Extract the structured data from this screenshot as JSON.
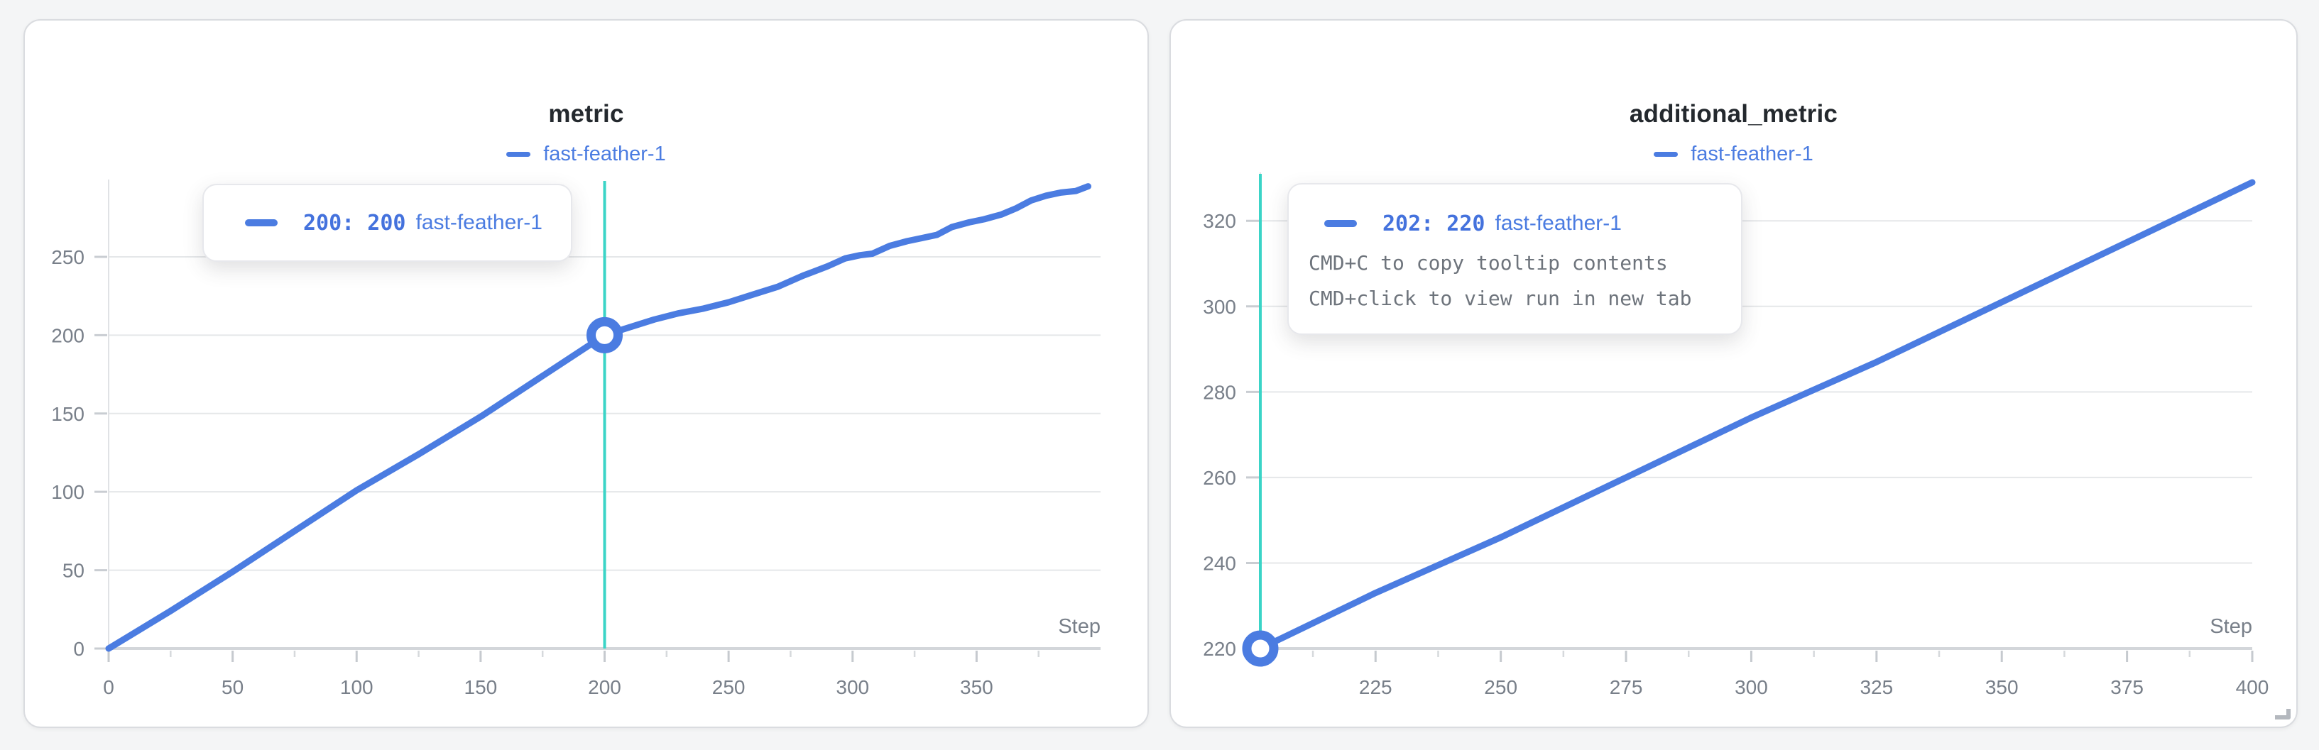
{
  "page": {
    "background": "#f4f5f6"
  },
  "tooltips": {
    "left": {
      "value": "200: 200",
      "run": "fast-feather-1"
    },
    "right": {
      "value": "202: 220",
      "run": "fast-feather-1",
      "hints": [
        "CMD+C to copy tooltip contents",
        "CMD+click to view run in new tab"
      ]
    }
  },
  "chart_data": [
    {
      "type": "line",
      "title": "metric",
      "xlabel": "Step",
      "legend_position": "top-center",
      "grid": true,
      "x_ticks": [
        0,
        50,
        100,
        150,
        200,
        250,
        300,
        350
      ],
      "y_ticks": [
        0,
        50,
        100,
        150,
        200,
        250
      ],
      "xlim": [
        0,
        400
      ],
      "ylim": [
        0,
        293
      ],
      "crosshair_x": 200,
      "crosshair_color": "#3bd4c7",
      "marker": [
        200,
        200
      ],
      "series": [
        {
          "name": "fast-feather-1",
          "color": "#4b7ce1",
          "points": [
            [
              0,
              0
            ],
            [
              25,
              24
            ],
            [
              50,
              49
            ],
            [
              75,
              75
            ],
            [
              100,
              101
            ],
            [
              125,
              124
            ],
            [
              150,
              148
            ],
            [
              175,
              174
            ],
            [
              200,
              200
            ],
            [
              210,
              205
            ],
            [
              220,
              210
            ],
            [
              230,
              214
            ],
            [
              240,
              217
            ],
            [
              250,
              221
            ],
            [
              260,
              226
            ],
            [
              270,
              231
            ],
            [
              280,
              238
            ],
            [
              290,
              244
            ],
            [
              297,
              249
            ],
            [
              303,
              251
            ],
            [
              308,
              252
            ],
            [
              315,
              257
            ],
            [
              322,
              260
            ],
            [
              328,
              262
            ],
            [
              334,
              264
            ],
            [
              340,
              269
            ],
            [
              347,
              272
            ],
            [
              353,
              274
            ],
            [
              360,
              277
            ],
            [
              366,
              281
            ],
            [
              372,
              286
            ],
            [
              378,
              289
            ],
            [
              384,
              291
            ],
            [
              390,
              292
            ],
            [
              395,
              295
            ]
          ]
        }
      ],
      "tooltip": {
        "value": "200: 200",
        "run": "fast-feather-1"
      }
    },
    {
      "type": "line",
      "title": "additional_metric",
      "xlabel": "Step",
      "legend_position": "top-center",
      "grid": true,
      "x_ticks": [
        225,
        250,
        275,
        300,
        325,
        350,
        375,
        400
      ],
      "y_ticks": [
        220,
        240,
        260,
        280,
        300,
        320
      ],
      "xlim": [
        202,
        400
      ],
      "ylim": [
        220,
        329
      ],
      "crosshair_x": 202,
      "crosshair_color": "#3bd4c7",
      "marker": [
        202,
        220
      ],
      "series": [
        {
          "name": "fast-feather-1",
          "color": "#4b7ce1",
          "points": [
            [
              202,
              220
            ],
            [
              225,
              233
            ],
            [
              250,
              246
            ],
            [
              275,
              260
            ],
            [
              300,
              274
            ],
            [
              325,
              287
            ],
            [
              350,
              301
            ],
            [
              375,
              315
            ],
            [
              400,
              329
            ]
          ]
        }
      ],
      "tooltip": {
        "value": "202: 220",
        "run": "fast-feather-1",
        "hints": [
          "CMD+C to copy tooltip contents",
          "CMD+click to view run in new tab"
        ]
      }
    }
  ]
}
